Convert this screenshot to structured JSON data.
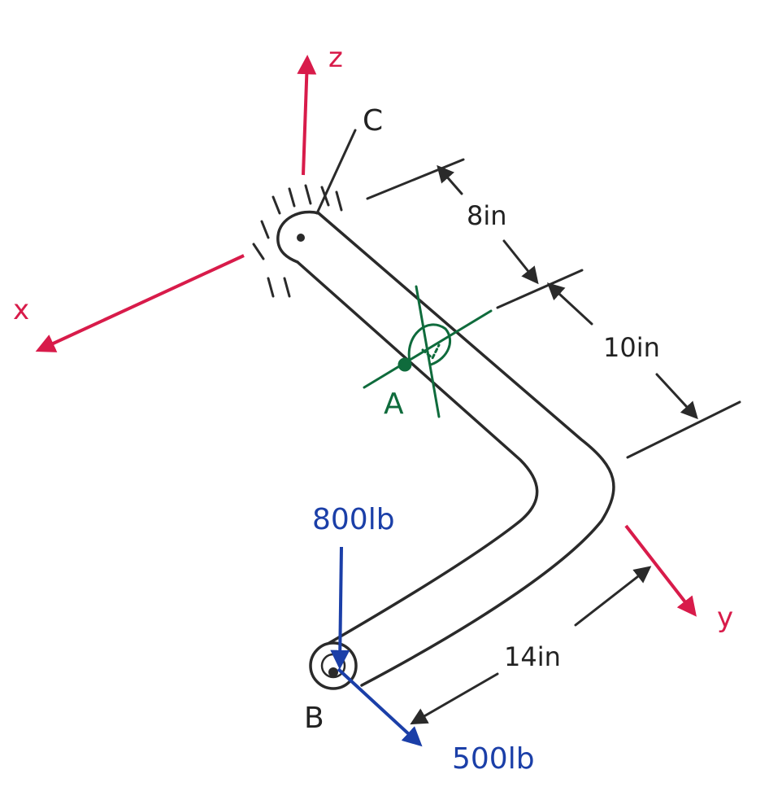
{
  "diagram": {
    "axes": {
      "z": "z",
      "x": "x",
      "y": "y"
    },
    "points": {
      "A": "A",
      "B": "B",
      "C": "C"
    },
    "dimensions": {
      "upper_segment": "8in",
      "middle_segment": "10in",
      "lower_segment": "14in"
    },
    "loads": {
      "vertical": "800lb",
      "horizontal": "500lb"
    },
    "colors": {
      "axis": "#d81b4a",
      "pipe": "#2a2a2a",
      "point_a": "#0f6b3c",
      "load": "#1b3fa8"
    }
  }
}
